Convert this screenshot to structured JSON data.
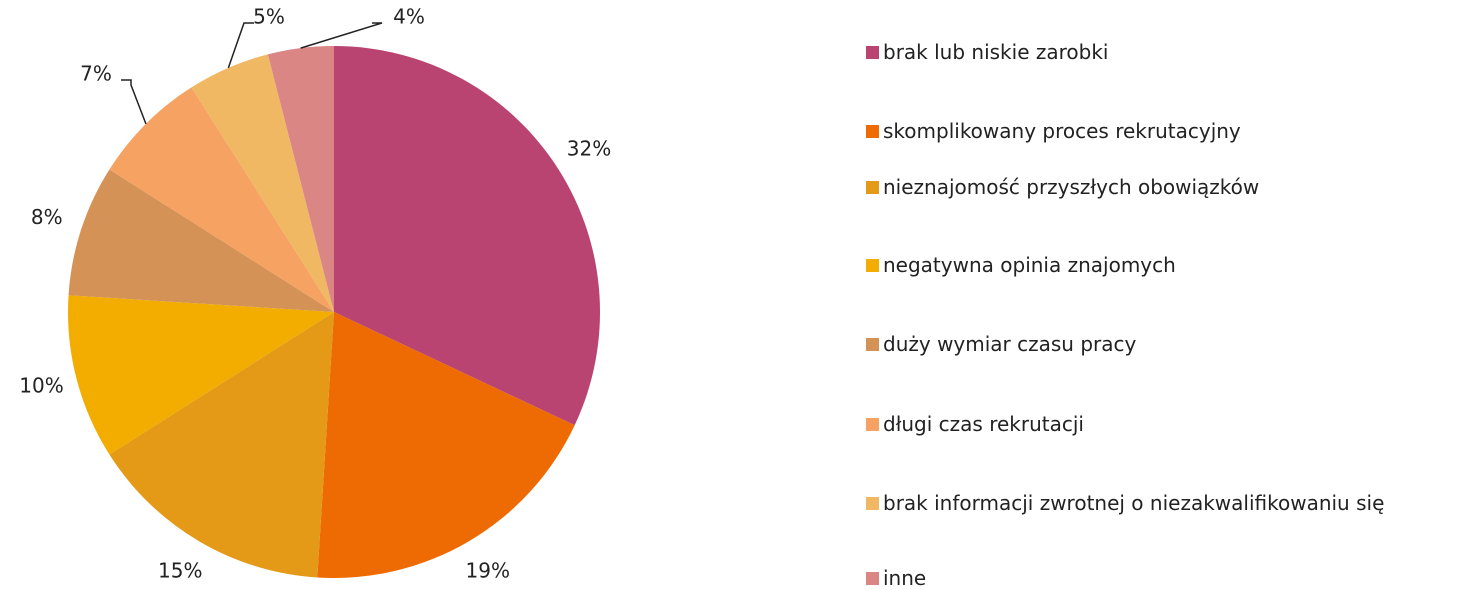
{
  "chart_data": {
    "type": "pie",
    "categories": [
      "brak lub niskie zarobki",
      "skomplikowany proces rekrutacyjny",
      "nieznajomość przyszłych obowiązków",
      "negatywna opinia znajomych",
      "duży wymiar czasu pracy",
      "długi czas rekrutacji",
      "brak informacji zwrotnej o niezakwalifikowaniu się",
      "inne"
    ],
    "values": [
      32,
      19,
      15,
      10,
      8,
      7,
      5,
      4
    ],
    "value_labels": [
      "32%",
      "19%",
      "15%",
      "10%",
      "8%",
      "7%",
      "5%",
      "4%"
    ],
    "colors": [
      "#b94471",
      "#ee6a03",
      "#e49a17",
      "#f2ad00",
      "#d49257",
      "#f5a263",
      "#f1b863",
      "#d98685"
    ],
    "legend": "right"
  }
}
